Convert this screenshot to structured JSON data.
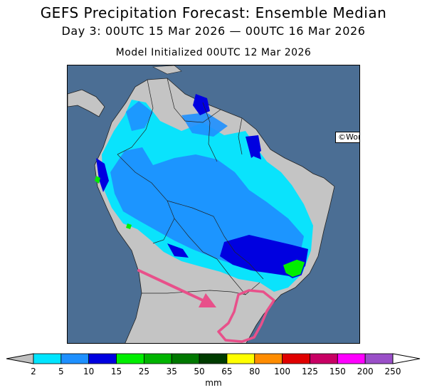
{
  "header": {
    "title": "GEFS Precipitation Forecast: Ensemble Median",
    "period": "Day 3: 00UTC 15 Mar 2026 — 00UTC 16 Mar 2026",
    "initialized": "Model Initialized 00UTC 12 Mar 2026"
  },
  "map": {
    "credit": "©World Ag Weather",
    "ocean_color": "#4b6e94",
    "land_color": "#c4c4c4",
    "annotation_color": "#e8508a",
    "annotation_shapes": [
      "arrow",
      "outline"
    ]
  },
  "colorbar": {
    "unit": "mm",
    "ticks": [
      "2",
      "5",
      "10",
      "15",
      "25",
      "35",
      "50",
      "65",
      "80",
      "100",
      "125",
      "150",
      "200",
      "250"
    ],
    "colors": [
      "#00e5ff",
      "#1e90ff",
      "#0000e0",
      "#00ee00",
      "#00b400",
      "#007800",
      "#003c00",
      "#ffff00",
      "#ff8c00",
      "#e00000",
      "#c80064",
      "#ff00ff",
      "#9a4fc8"
    ],
    "below_color": "#c0c0c0",
    "above_color": "#ffffff"
  }
}
